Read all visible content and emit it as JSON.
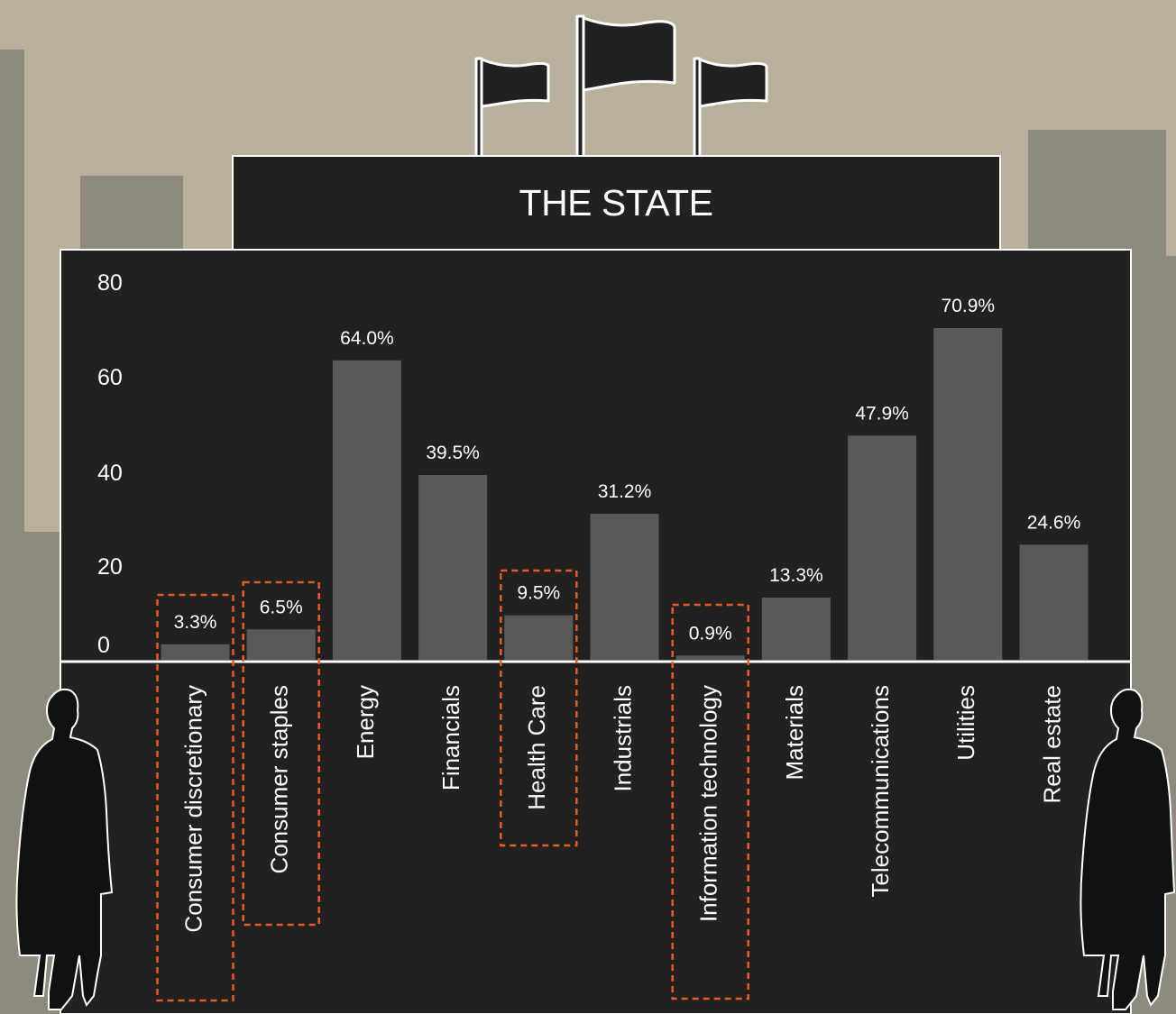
{
  "title": "THE STATE",
  "colors": {
    "background": "#b9b09c",
    "panel": "#222120",
    "bar": "#5a5959",
    "highlight": "#e35a2c",
    "text": "#ffffff"
  },
  "icons": [
    "flag-icon",
    "flag-icon",
    "flag-icon",
    "person-silhouette-icon",
    "person-silhouette-icon"
  ],
  "chart_data": {
    "type": "bar",
    "title": "THE STATE",
    "categories": [
      "Consumer discretionary",
      "Consumer staples",
      "Energy",
      "Financials",
      "Health Care",
      "Industrials",
      "Information technology",
      "Materials",
      "Telecommunications",
      "Utilities",
      "Real estate"
    ],
    "values": [
      3.3,
      6.5,
      64.0,
      39.5,
      9.5,
      31.2,
      0.9,
      13.3,
      47.9,
      70.9,
      24.6
    ],
    "value_labels": [
      "3.3%",
      "6.5%",
      "64.0%",
      "39.5%",
      "9.5%",
      "31.2%",
      "0.9%",
      "13.3%",
      "47.9%",
      "70.9%",
      "24.6%"
    ],
    "highlighted": [
      "Consumer discretionary",
      "Consumer staples",
      "Health Care",
      "Information technology"
    ],
    "y_ticks": [
      0,
      20,
      40,
      60,
      80
    ],
    "ylim": [
      0,
      80
    ],
    "xlabel": "",
    "ylabel": "",
    "grid": false,
    "legend": "none"
  }
}
